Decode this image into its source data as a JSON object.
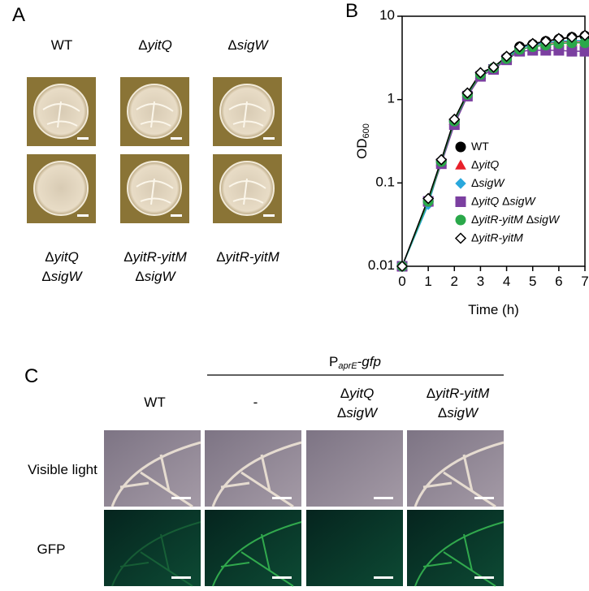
{
  "panel_a": {
    "label": "A",
    "top_labels": [
      "WT",
      "ΔyitQ",
      "ΔsigW"
    ],
    "bottom_labels": [
      [
        "ΔyitQ",
        "ΔsigW"
      ],
      [
        "ΔyitR-yitM",
        "ΔsigW"
      ],
      [
        "ΔyitR-yitM"
      ]
    ]
  },
  "chart_data": {
    "type": "line",
    "label": "B",
    "x_label": "Time (h)",
    "y_label": {
      "text": "OD",
      "subscript": "600"
    },
    "log_y": true,
    "x": [
      0,
      1,
      1.5,
      2,
      2.5,
      3,
      3.5,
      4,
      4.5,
      5,
      5.5,
      6,
      6.5,
      7
    ],
    "xlim": [
      0,
      7
    ],
    "xticks": [
      0,
      1,
      2,
      3,
      4,
      5,
      6,
      7
    ],
    "ylim": [
      0.01,
      10
    ],
    "yticks": [
      0.01,
      0.1,
      1,
      10
    ],
    "series": [
      {
        "name": "WT",
        "color": "#000000",
        "marker": "circle",
        "values": [
          0.01,
          0.06,
          0.18,
          0.55,
          1.15,
          2.0,
          2.4,
          3.2,
          4.3,
          4.6,
          5.0,
          5.3,
          5.6,
          5.8
        ]
      },
      {
        "name": "ΔyitQ",
        "color": "#e8202a",
        "marker": "triangle",
        "values": [
          0.01,
          0.06,
          0.18,
          0.56,
          1.2,
          2.0,
          2.4,
          3.2,
          4.2,
          4.5,
          4.7,
          4.9,
          5.0,
          5.0
        ]
      },
      {
        "name": "ΔsigW",
        "color": "#2aa8dc",
        "marker": "diamond",
        "values": [
          0.01,
          0.055,
          0.18,
          0.55,
          1.2,
          2.0,
          2.4,
          3.2,
          4.2,
          4.5,
          4.8,
          5.0,
          5.1,
          5.1
        ]
      },
      {
        "name": "ΔyitQ ΔsigW",
        "color": "#7b3fa0",
        "marker": "square",
        "values": [
          0.01,
          0.06,
          0.17,
          0.5,
          1.1,
          1.9,
          2.3,
          3.0,
          3.8,
          3.9,
          3.9,
          3.9,
          3.8,
          3.8
        ]
      },
      {
        "name": "ΔyitR-yitM ΔsigW",
        "color": "#2aa84a",
        "marker": "circle",
        "values": [
          0.01,
          0.06,
          0.18,
          0.55,
          1.15,
          2.0,
          2.4,
          3.1,
          4.0,
          4.3,
          4.5,
          4.7,
          4.8,
          4.8
        ]
      },
      {
        "name": "ΔyitR-yitM",
        "color": "#000000",
        "marker": "open-diamond",
        "values": [
          0.01,
          0.065,
          0.19,
          0.58,
          1.2,
          2.1,
          2.45,
          3.3,
          4.3,
          4.7,
          5.0,
          5.4,
          5.6,
          5.9
        ]
      }
    ]
  },
  "panel_c": {
    "label": "C",
    "reporter": {
      "main": "P",
      "subscript": "aprE",
      "suffix": "-gfp"
    },
    "columns": [
      [
        "WT"
      ],
      [
        "-"
      ],
      [
        "ΔyitQ",
        "ΔsigW"
      ],
      [
        "ΔyitR-yitM",
        "ΔsigW"
      ]
    ],
    "rows": [
      "Visible light",
      "GFP"
    ]
  }
}
